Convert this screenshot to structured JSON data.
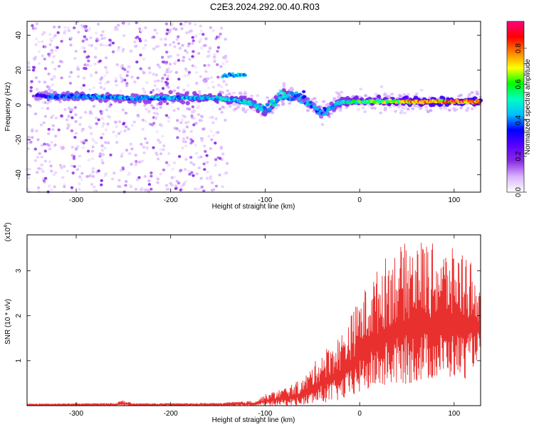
{
  "figure": {
    "title": "C2E3.2024.292.00.40.R03"
  },
  "chart_data": [
    {
      "type": "heatmap",
      "title": "C2E3.2024.292.00.40.R03",
      "xlabel": "Height of straight line (km)",
      "ylabel": "Frequency (Hz)",
      "xlim": [
        -352,
        128
      ],
      "ylim": [
        -50,
        48
      ],
      "x_ticks": [
        "-300",
        "-200",
        "-100",
        "0",
        "100"
      ],
      "x_tick_values": [
        -300,
        -200,
        -100,
        0,
        100
      ],
      "y_ticks": [
        "-40",
        "-20",
        "0",
        "20",
        "40"
      ],
      "y_tick_values": [
        -40,
        -20,
        0,
        20,
        40
      ],
      "colorbar": {
        "label": "Normalized spectral amplitude",
        "range": [
          0.0,
          0.95
        ],
        "ticks": [
          "0.0",
          "0.2",
          "0.4",
          "0.6",
          "0.8"
        ],
        "tick_values": [
          0.0,
          0.2,
          0.4,
          0.6,
          0.8
        ],
        "colors": [
          "#ffffff",
          "#d9b3ff",
          "#8a2be2",
          "#5a00ff",
          "#0000ff",
          "#00bfff",
          "#00ffc0",
          "#00ff00",
          "#ffff00",
          "#ff8000",
          "#ff0000",
          "#ff0080"
        ]
      },
      "ridge": {
        "description_points": [
          {
            "x": -340,
            "freq": 5,
            "amp": 0.35
          },
          {
            "x": -300,
            "freq": 5,
            "amp": 0.45
          },
          {
            "x": -250,
            "freq": 4,
            "amp": 0.45
          },
          {
            "x": -200,
            "freq": 4,
            "amp": 0.45
          },
          {
            "x": -150,
            "freq": 4,
            "amp": 0.5
          },
          {
            "x": -120,
            "freq": 2,
            "amp": 0.5
          },
          {
            "x": -100,
            "freq": -3,
            "amp": 0.5
          },
          {
            "x": -80,
            "freq": 6,
            "amp": 0.5
          },
          {
            "x": -60,
            "freq": 4,
            "amp": 0.45
          },
          {
            "x": -40,
            "freq": -5,
            "amp": 0.4
          },
          {
            "x": -20,
            "freq": 2,
            "amp": 0.5
          },
          {
            "x": 0,
            "freq": 2,
            "amp": 0.6
          },
          {
            "x": 50,
            "freq": 2,
            "amp": 0.75
          },
          {
            "x": 100,
            "freq": 2,
            "amp": 0.85
          },
          {
            "x": 125,
            "freq": 2,
            "amp": 0.85
          }
        ],
        "secondary_band": [
          {
            "x": -145,
            "freq": 17,
            "amp": 0.5
          },
          {
            "x": -120,
            "freq": 18,
            "amp": 0.5
          }
        ],
        "noise_region_x": [
          -352,
          -140
        ]
      }
    },
    {
      "type": "line",
      "xlabel": "Height of straight line (km)",
      "ylabel": "SNR (10 * v/v)",
      "y_multiplier_label": "(x10",
      "y_multiplier_exp": "4",
      "xlim": [
        -352,
        128
      ],
      "ylim": [
        0,
        3.8
      ],
      "x_ticks": [
        "-300",
        "-200",
        "-100",
        "0",
        "100"
      ],
      "x_tick_values": [
        -300,
        -200,
        -100,
        0,
        100
      ],
      "y_ticks": [
        "1",
        "2",
        "3"
      ],
      "y_tick_values": [
        1,
        2,
        3
      ],
      "series": [
        {
          "color": "#e8312f",
          "envelope": [
            {
              "x": -352,
              "low": 0.0,
              "high": 0.04
            },
            {
              "x": -260,
              "low": 0.0,
              "high": 0.06
            },
            {
              "x": -250,
              "low": 0.0,
              "high": 0.13
            },
            {
              "x": -240,
              "low": 0.0,
              "high": 0.05
            },
            {
              "x": -150,
              "low": 0.0,
              "high": 0.06
            },
            {
              "x": -110,
              "low": 0.0,
              "high": 0.12
            },
            {
              "x": -100,
              "low": 0.0,
              "high": 0.25
            },
            {
              "x": -80,
              "low": 0.0,
              "high": 0.4
            },
            {
              "x": -60,
              "low": 0.0,
              "high": 0.6
            },
            {
              "x": -40,
              "low": 0.05,
              "high": 1.2
            },
            {
              "x": -20,
              "low": 0.1,
              "high": 1.6
            },
            {
              "x": -5,
              "low": 0.2,
              "high": 2.2
            },
            {
              "x": 5,
              "low": 0.3,
              "high": 2.6
            },
            {
              "x": 30,
              "low": 0.4,
              "high": 3.4
            },
            {
              "x": 60,
              "low": 0.5,
              "high": 3.75
            },
            {
              "x": 90,
              "low": 0.6,
              "high": 3.5
            },
            {
              "x": 115,
              "low": 0.6,
              "high": 3.5
            },
            {
              "x": 128,
              "low": 1.2,
              "high": 2.5
            }
          ]
        }
      ]
    }
  ]
}
